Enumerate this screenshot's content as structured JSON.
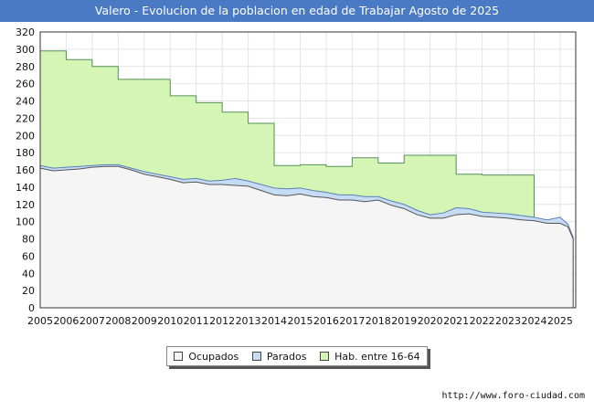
{
  "header": {
    "title": "Valero - Evolucion de la poblacion en edad de Trabajar Agosto de 2025"
  },
  "footer": {
    "source": "http://www.foro-ciudad.com"
  },
  "legend": {
    "items": [
      {
        "label": "Ocupados",
        "color": "#f5f5f5"
      },
      {
        "label": "Parados",
        "color": "#c6dcf4"
      },
      {
        "label": "Hab. entre 16-64",
        "color": "#d4f5b4"
      }
    ]
  },
  "chart_data": {
    "type": "area",
    "title": "Valero - Evolucion de la poblacion en edad de Trabajar Agosto de 2025",
    "xlabel": "",
    "ylabel": "",
    "xlim": [
      2005,
      2025.6
    ],
    "ylim": [
      0,
      320
    ],
    "x_ticks": [
      "2005",
      "2006",
      "2007",
      "2008",
      "2009",
      "2010",
      "2011",
      "2012",
      "2013",
      "2014",
      "2015",
      "2016",
      "2017",
      "2018",
      "2019",
      "2020",
      "2021",
      "2022",
      "2023",
      "2024",
      "2025"
    ],
    "y_ticks": [
      0,
      20,
      40,
      60,
      80,
      100,
      120,
      140,
      160,
      180,
      200,
      220,
      240,
      260,
      280,
      300,
      320
    ],
    "grid": true,
    "legend_position": "bottom",
    "series": [
      {
        "name": "Hab. entre 16-64",
        "color": "#d4f5b4",
        "steps": [
          {
            "from": 2005,
            "to": 2006,
            "value": 298
          },
          {
            "from": 2006,
            "to": 2007,
            "value": 288
          },
          {
            "from": 2007,
            "to": 2008,
            "value": 280
          },
          {
            "from": 2008,
            "to": 2010,
            "value": 265
          },
          {
            "from": 2010,
            "to": 2011,
            "value": 246
          },
          {
            "from": 2011,
            "to": 2012,
            "value": 238
          },
          {
            "from": 2012,
            "to": 2013,
            "value": 227
          },
          {
            "from": 2013,
            "to": 2014,
            "value": 214
          },
          {
            "from": 2014,
            "to": 2015,
            "value": 165
          },
          {
            "from": 2015,
            "to": 2016,
            "value": 166
          },
          {
            "from": 2016,
            "to": 2017,
            "value": 164
          },
          {
            "from": 2017,
            "to": 2018,
            "value": 174
          },
          {
            "from": 2018,
            "to": 2019,
            "value": 168
          },
          {
            "from": 2019,
            "to": 2021,
            "value": 177
          },
          {
            "from": 2021,
            "to": 2022,
            "value": 155
          },
          {
            "from": 2022,
            "to": 2024,
            "value": 154
          }
        ]
      },
      {
        "name": "Parados",
        "color": "#c6dcf4",
        "x": [
          2005,
          2005.5,
          2006,
          2006.5,
          2007,
          2007.5,
          2008,
          2008.5,
          2009,
          2009.5,
          2010,
          2010.5,
          2011,
          2011.5,
          2012,
          2012.5,
          2013,
          2013.5,
          2014,
          2014.5,
          2015,
          2015.5,
          2016,
          2016.5,
          2017,
          2017.5,
          2018,
          2018.5,
          2019,
          2019.5,
          2020,
          2020.5,
          2021,
          2021.5,
          2022,
          2022.5,
          2023,
          2023.5,
          2024,
          2024.5,
          2025,
          2025.3,
          2025.5
        ],
        "values": [
          165,
          162,
          163,
          164,
          165,
          166,
          166,
          162,
          158,
          155,
          152,
          149,
          150,
          147,
          148,
          150,
          147,
          143,
          139,
          138,
          139,
          136,
          134,
          131,
          131,
          129,
          129,
          124,
          120,
          113,
          108,
          110,
          116,
          115,
          111,
          110,
          109,
          107,
          105,
          102,
          105,
          97,
          82
        ]
      },
      {
        "name": "Ocupados",
        "color": "#f5f5f5",
        "x": [
          2005,
          2005.5,
          2006,
          2006.5,
          2007,
          2007.5,
          2008,
          2008.5,
          2009,
          2009.5,
          2010,
          2010.5,
          2011,
          2011.5,
          2012,
          2012.5,
          2013,
          2013.5,
          2014,
          2014.5,
          2015,
          2015.5,
          2016,
          2016.5,
          2017,
          2017.5,
          2018,
          2018.5,
          2019,
          2019.5,
          2020,
          2020.5,
          2021,
          2021.5,
          2022,
          2022.5,
          2023,
          2023.5,
          2024,
          2024.5,
          2025,
          2025.3,
          2025.5
        ],
        "values": [
          162,
          159,
          160,
          161,
          163,
          164,
          164,
          160,
          155,
          152,
          149,
          145,
          146,
          143,
          143,
          142,
          141,
          136,
          131,
          130,
          132,
          129,
          128,
          125,
          125,
          123,
          125,
          119,
          115,
          108,
          104,
          104,
          108,
          109,
          106,
          105,
          104,
          102,
          101,
          98,
          98,
          94,
          80
        ]
      }
    ]
  }
}
